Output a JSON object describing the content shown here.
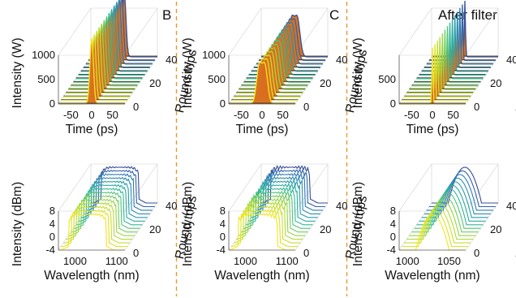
{
  "panel_labels": [
    "B",
    "C",
    "After filter"
  ],
  "chart_data": [
    {
      "id": "time-B",
      "type": "waterfall",
      "xlabel": "Time (ps)",
      "ylabel": "Intensity (W)",
      "zlabel": "Round trips",
      "x_ticks": [
        "-50",
        "0",
        "50"
      ],
      "y_ticks": [
        "0",
        "500",
        "1000"
      ],
      "z_ticks": [
        "0",
        "20",
        "40"
      ],
      "xlim": [
        -80,
        80
      ],
      "ylim": [
        0,
        1000
      ],
      "zlim": [
        0,
        40
      ],
      "series": [
        {
          "profile": "single-peak",
          "peak_w": 1350,
          "width_ps": 6,
          "round_trips": [
            0,
            40
          ]
        }
      ],
      "colormap": [
        "#3b2c85",
        "#2d7fb8",
        "#27b89b",
        "#a5d93a",
        "#f4e61e"
      ],
      "background_color": "#d9701e"
    },
    {
      "id": "time-C",
      "type": "waterfall",
      "xlabel": "Time (ps)",
      "ylabel": "Intensity (W)",
      "zlabel": "Round trips",
      "x_ticks": [
        "-50",
        "0",
        "50"
      ],
      "y_ticks": [
        "0",
        "500",
        "1000"
      ],
      "z_ticks": [
        "0",
        "20",
        "40"
      ],
      "xlim": [
        -80,
        80
      ],
      "ylim": [
        0,
        1000
      ],
      "zlim": [
        0,
        40
      ],
      "series": [
        {
          "profile": "double-peak",
          "peak_w": 900,
          "width_ps": 9,
          "round_trips": [
            0,
            40
          ]
        }
      ],
      "colormap": [
        "#3b2c85",
        "#2d7fb8",
        "#27b89b",
        "#a5d93a",
        "#f4e61e"
      ],
      "background_color": "#d9701e"
    },
    {
      "id": "time-filter",
      "type": "waterfall",
      "xlabel": "Time (ps)",
      "ylabel": "Intensity (W)",
      "zlabel": "Round trips",
      "x_ticks": [
        "-50",
        "0",
        "50"
      ],
      "y_ticks": [
        "0",
        "500"
      ],
      "z_ticks": [
        "0",
        "20",
        "40"
      ],
      "xlim": [
        -80,
        80
      ],
      "ylim": [
        0,
        1000
      ],
      "zlim": [
        0,
        40
      ],
      "series": [
        {
          "profile": "narrow-peak",
          "peak_w": 1150,
          "width_ps": 2,
          "round_trips": [
            0,
            40
          ]
        }
      ],
      "colormap": [
        "#3b2c85",
        "#2d7fb8",
        "#27b89b",
        "#a5d93a",
        "#f4e61e"
      ],
      "background_color": "#d9701e"
    },
    {
      "id": "spectrum-B",
      "type": "waterfall",
      "xlabel": "Wavelength (nm)",
      "ylabel": "Intensity (dBm)",
      "zlabel": "Round trips",
      "x_ticks": [
        "1000",
        "1100"
      ],
      "y_ticks": [
        "-4",
        "0",
        "4",
        "8"
      ],
      "z_ticks": [
        "0",
        "20",
        "40"
      ],
      "xlim": [
        960,
        1120
      ],
      "ylim": [
        -4,
        8
      ],
      "zlim": [
        0,
        40
      ],
      "series": [
        {
          "profile": "flat-top-spectrum",
          "center_nm": 1030,
          "width_nm": 90,
          "round_trips": [
            0,
            40
          ]
        }
      ],
      "colormap": [
        "#3b2c85",
        "#2d7fb8",
        "#27b89b",
        "#a5d93a",
        "#f4e61e"
      ]
    },
    {
      "id": "spectrum-C",
      "type": "waterfall",
      "xlabel": "Wavelength (nm)",
      "ylabel": "Intensity (dBm)",
      "zlabel": "Round trips",
      "x_ticks": [
        "1000",
        "1100"
      ],
      "y_ticks": [
        "-4",
        "0",
        "4",
        "8"
      ],
      "z_ticks": [
        "0",
        "20",
        "40"
      ],
      "xlim": [
        960,
        1120
      ],
      "ylim": [
        -4,
        8
      ],
      "zlim": [
        0,
        40
      ],
      "series": [
        {
          "profile": "flat-top-spectrum",
          "center_nm": 1030,
          "width_nm": 95,
          "round_trips": [
            0,
            40
          ]
        }
      ],
      "colormap": [
        "#3b2c85",
        "#2d7fb8",
        "#27b89b",
        "#a5d93a",
        "#f4e61e"
      ]
    },
    {
      "id": "spectrum-filter",
      "type": "waterfall",
      "xlabel": "Wavelength (nm)",
      "ylabel": "Intensity (dBm)",
      "zlabel": "Round trips",
      "x_ticks": [
        "1000",
        "1050"
      ],
      "y_ticks": [
        "-4",
        "0",
        "4",
        "8"
      ],
      "z_ticks": [
        "0",
        "20",
        "40"
      ],
      "xlim": [
        990,
        1070
      ],
      "ylim": [
        -4,
        8
      ],
      "zlim": [
        0,
        40
      ],
      "series": [
        {
          "profile": "parabolic-spectrum",
          "center_nm": 1030,
          "width_nm": 40,
          "round_trips": [
            0,
            40
          ]
        }
      ],
      "colormap": [
        "#3b2c85",
        "#2d7fb8",
        "#27b89b",
        "#a5d93a",
        "#f4e61e"
      ]
    }
  ]
}
